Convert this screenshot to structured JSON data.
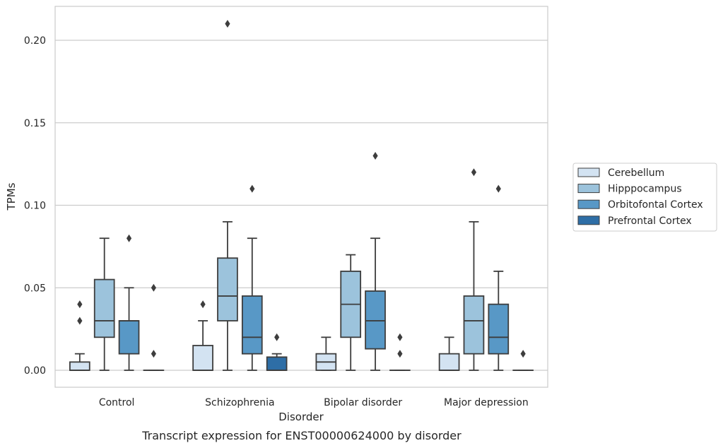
{
  "chart_data": {
    "type": "box",
    "caption": "Transcript expression for ENST00000624000 by disorder",
    "xlabel": "Disorder",
    "ylabel": "TPMs",
    "ylim": [
      -0.01,
      0.22
    ],
    "yticks": [
      0.0,
      0.05,
      0.1,
      0.15,
      0.2
    ],
    "ytick_labels": [
      "0.00",
      "0.05",
      "0.10",
      "0.15",
      "0.20"
    ],
    "grid": "horizontal",
    "legend_position": "right",
    "categories": [
      "Control",
      "Schizophrenia",
      "Bipolar disorder",
      "Major depression"
    ],
    "series": [
      {
        "name": "Cerebellum",
        "color": "#d3e3f2",
        "boxes": [
          {
            "whislo": 0.0,
            "q1": 0.0,
            "med": 0.0,
            "q3": 0.005,
            "whishi": 0.01,
            "fliers": [
              0.03,
              0.04
            ]
          },
          {
            "whislo": 0.0,
            "q1": 0.0,
            "med": 0.0,
            "q3": 0.015,
            "whishi": 0.03,
            "fliers": [
              0.04
            ]
          },
          {
            "whislo": 0.0,
            "q1": 0.0,
            "med": 0.005,
            "q3": 0.01,
            "whishi": 0.02,
            "fliers": []
          },
          {
            "whislo": 0.0,
            "q1": 0.0,
            "med": 0.0,
            "q3": 0.01,
            "whishi": 0.02,
            "fliers": []
          }
        ]
      },
      {
        "name": "Hipppocampus",
        "color": "#9cc3dc",
        "boxes": [
          {
            "whislo": 0.0,
            "q1": 0.02,
            "med": 0.03,
            "q3": 0.055,
            "whishi": 0.08,
            "fliers": []
          },
          {
            "whislo": 0.0,
            "q1": 0.03,
            "med": 0.045,
            "q3": 0.068,
            "whishi": 0.09,
            "fliers": [
              0.21
            ]
          },
          {
            "whislo": 0.0,
            "q1": 0.02,
            "med": 0.04,
            "q3": 0.06,
            "whishi": 0.07,
            "fliers": []
          },
          {
            "whislo": 0.0,
            "q1": 0.01,
            "med": 0.03,
            "q3": 0.045,
            "whishi": 0.09,
            "fliers": [
              0.12
            ]
          }
        ]
      },
      {
        "name": "Orbitofontal Cortex",
        "color": "#5898c6",
        "boxes": [
          {
            "whislo": 0.0,
            "q1": 0.01,
            "med": 0.03,
            "q3": 0.03,
            "whishi": 0.05,
            "fliers": [
              0.08
            ]
          },
          {
            "whislo": 0.0,
            "q1": 0.01,
            "med": 0.02,
            "q3": 0.045,
            "whishi": 0.08,
            "fliers": [
              0.11
            ]
          },
          {
            "whislo": 0.0,
            "q1": 0.013,
            "med": 0.03,
            "q3": 0.048,
            "whishi": 0.08,
            "fliers": [
              0.13
            ]
          },
          {
            "whislo": 0.0,
            "q1": 0.01,
            "med": 0.02,
            "q3": 0.04,
            "whishi": 0.06,
            "fliers": [
              0.11
            ]
          }
        ]
      },
      {
        "name": "Prefrontal Cortex",
        "color": "#2e6ea6",
        "boxes": [
          {
            "whislo": 0.0,
            "q1": 0.0,
            "med": 0.0,
            "q3": 0.0,
            "whishi": 0.0,
            "fliers": [
              0.01,
              0.05
            ]
          },
          {
            "whislo": 0.0,
            "q1": 0.0,
            "med": 0.0,
            "q3": 0.008,
            "whishi": 0.01,
            "fliers": [
              0.02
            ]
          },
          {
            "whislo": 0.0,
            "q1": 0.0,
            "med": 0.0,
            "q3": 0.0,
            "whishi": 0.0,
            "fliers": [
              0.01,
              0.02
            ]
          },
          {
            "whislo": 0.0,
            "q1": 0.0,
            "med": 0.0,
            "q3": 0.0,
            "whishi": 0.0,
            "fliers": [
              0.01
            ]
          }
        ]
      }
    ]
  }
}
